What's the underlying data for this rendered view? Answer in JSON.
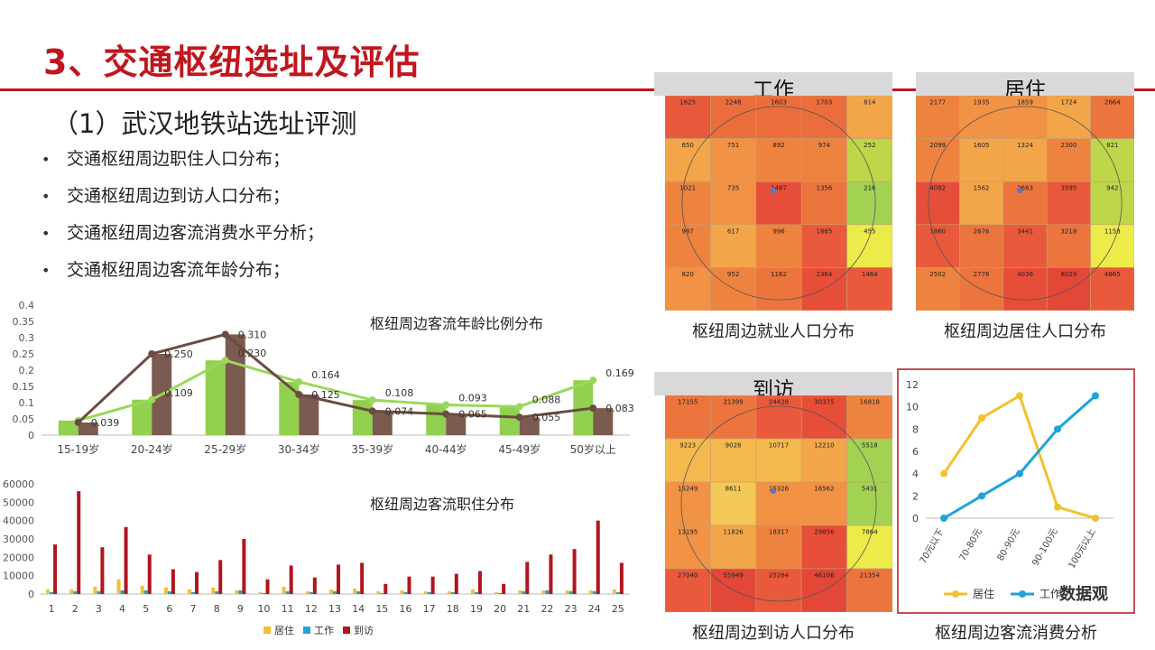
{
  "title": "3、交通枢纽选址及评估",
  "subtitle": "（1）武汉地铁站选址评测",
  "bullets": [
    "交通枢纽周边职住人口分布；",
    "交通枢纽周边到访人口分布；",
    "交通枢纽周边客流消费水平分析；",
    "交通枢纽周边客流年龄分布；"
  ],
  "colors": {
    "title_red": "#c0161e",
    "green": "#92d050",
    "brown": "#7b5a4f",
    "yellow": "#f2c12e",
    "blue": "#1fa3d8",
    "darkred": "#b0161e"
  },
  "chart_data": [
    {
      "type": "bar",
      "title": "枢纽周边客流年龄比例分布",
      "categories": [
        "15-19岁",
        "20-24岁",
        "25-29岁",
        "30-34岁",
        "35-39岁",
        "40-44岁",
        "45-49岁",
        "50岁以上"
      ],
      "ylim": [
        0,
        0.4
      ],
      "yticks": [
        "0",
        "0.05",
        "0.1",
        "0.15",
        "0.2",
        "0.25",
        "0.3",
        "0.35",
        "0.4"
      ],
      "series": [
        {
          "values": [
            0.045,
            0.109,
            0.23,
            0.164,
            0.108,
            0.093,
            0.088,
            0.169
          ],
          "labels": [
            "",
            "0.109",
            "0.230",
            "0.164",
            "0.108",
            "0.093",
            "0.088",
            "0.169"
          ],
          "color": "#92d050"
        },
        {
          "values": [
            0.039,
            0.25,
            0.31,
            0.125,
            0.074,
            0.065,
            0.055,
            0.083
          ],
          "labels": [
            "0.039",
            "0.250",
            "0.310",
            "0.125",
            "0.074",
            "0.065",
            "0.055",
            "0.083"
          ],
          "color": "#7b5a4f"
        }
      ],
      "grid": false
    },
    {
      "type": "bar",
      "title": "枢纽周边客流职住分布",
      "categories": [
        "1",
        "2",
        "3",
        "4",
        "5",
        "6",
        "7",
        "8",
        "9",
        "10",
        "11",
        "12",
        "13",
        "14",
        "15",
        "16",
        "17",
        "18",
        "19",
        "20",
        "21",
        "22",
        "23",
        "24",
        "25"
      ],
      "ylim": [
        0,
        60000
      ],
      "yticks": [
        "0",
        "10000",
        "20000",
        "30000",
        "40000",
        "50000",
        "60000"
      ],
      "legend_position": "bottom",
      "series": [
        {
          "name": "居住",
          "color": "#f2c12e",
          "values": [
            2500,
            2500,
            4000,
            8000,
            4500,
            3500,
            2500,
            3500,
            2000,
            1000,
            4000,
            1500,
            2500,
            3000,
            1500,
            2000,
            1500,
            1500,
            2500,
            1000,
            2000,
            2000,
            2000,
            2000,
            2500
          ]
        },
        {
          "name": "工作",
          "color": "#1fa3d8",
          "values": [
            1000,
            1500,
            1500,
            2000,
            2000,
            1500,
            1000,
            1500,
            2000,
            500,
            1500,
            1000,
            1500,
            1500,
            500,
            1000,
            1000,
            1000,
            1000,
            500,
            1500,
            2000,
            1500,
            1500,
            1000
          ]
        },
        {
          "name": "到访",
          "color": "#b0161e",
          "values": [
            27000,
            56000,
            25500,
            36500,
            21500,
            13500,
            12000,
            18500,
            30000,
            8000,
            15500,
            9000,
            16000,
            17000,
            5500,
            9500,
            9500,
            11000,
            12500,
            5500,
            17500,
            21500,
            24500,
            40000,
            17000
          ]
        }
      ],
      "grid": false
    },
    {
      "type": "line",
      "categories": [
        "70元以下",
        "70-80元",
        "80-90元",
        "90-100元",
        "100元以上"
      ],
      "ylim": [
        0,
        12
      ],
      "yticks": [
        "0",
        "2",
        "4",
        "6",
        "8",
        "10",
        "12"
      ],
      "legend_position": "bottom",
      "series": [
        {
          "name": "居住",
          "color": "#f2c12e",
          "values": [
            4,
            9,
            11,
            1,
            0
          ]
        },
        {
          "name": "工作",
          "color": "#1fa3d8",
          "values": [
            0,
            2,
            4,
            8,
            11
          ]
        }
      ],
      "grid": false
    },
    {
      "type": "heatmap",
      "title": "工作",
      "caption": "枢纽周边就业人口分布",
      "values": [
        [
          1625,
          2248,
          1603,
          1703,
          814
        ],
        [
          650,
          751,
          892,
          974,
          252
        ],
        [
          1021,
          735,
          1487,
          1356,
          216
        ],
        [
          987,
          617,
          996,
          1865,
          455
        ],
        [
          820,
          952,
          1162,
          2364,
          1464
        ]
      ],
      "colors": [
        [
          "#e74c2c",
          "#e9622c",
          "#e9622c",
          "#e9622c",
          "#f2a03c"
        ],
        [
          "#f2a03c",
          "#f08a36",
          "#ed7a32",
          "#ed7a32",
          "#b9d43c"
        ],
        [
          "#ed7a32",
          "#f08a36",
          "#e5402a",
          "#ea6a30",
          "#9bcf46"
        ],
        [
          "#ed7a32",
          "#f2a03c",
          "#ed7a32",
          "#e74c2c",
          "#eaea3c"
        ],
        [
          "#f08a36",
          "#ed7a32",
          "#ea6a30",
          "#e5402a",
          "#e74c2c"
        ]
      ]
    },
    {
      "type": "heatmap",
      "title": "居住",
      "caption": "枢纽周边居住人口分布",
      "values": [
        [
          2177,
          1935,
          1859,
          1724,
          2664
        ],
        [
          2099,
          1605,
          1324,
          2300,
          821
        ],
        [
          4092,
          1562,
          2663,
          3595,
          942
        ],
        [
          3860,
          2676,
          3441,
          3218,
          1158
        ],
        [
          2502,
          2776,
          4036,
          8029,
          4865
        ]
      ],
      "colors": [
        [
          "#ed7a32",
          "#f08a36",
          "#f08a36",
          "#f2a03c",
          "#ea6a30"
        ],
        [
          "#ed7a32",
          "#f2a03c",
          "#f2a03c",
          "#ed7a32",
          "#b9d43c"
        ],
        [
          "#e5402a",
          "#f2a03c",
          "#ea6a30",
          "#e74c2c",
          "#b9d43c"
        ],
        [
          "#e74c2c",
          "#ea6a30",
          "#e74c2c",
          "#ea6a30",
          "#eaea3c"
        ],
        [
          "#ed7a32",
          "#ea6a30",
          "#e5402a",
          "#e03828",
          "#e74c2c"
        ]
      ]
    },
    {
      "type": "heatmap",
      "title": "到访",
      "caption": "枢纽周边到访人口分布",
      "values": [
        [
          17155,
          21399,
          24428,
          30375,
          16818
        ],
        [
          9223,
          9028,
          10717,
          12210,
          5518
        ],
        [
          15249,
          8611,
          15326,
          16562,
          5431
        ],
        [
          13195,
          11826,
          18317,
          29856,
          7864
        ],
        [
          27040,
          55949,
          25264,
          46106,
          21354
        ]
      ],
      "colors": [
        [
          "#ea6a30",
          "#ea6a30",
          "#e74c2c",
          "#e5402a",
          "#ed7a32"
        ],
        [
          "#f2b441",
          "#f2b441",
          "#f2b441",
          "#f2a03c",
          "#9bcf46"
        ],
        [
          "#f08a36",
          "#f2c44a",
          "#f08a36",
          "#f08a36",
          "#9bcf46"
        ],
        [
          "#f08a36",
          "#f2a03c",
          "#ed7a32",
          "#e5402a",
          "#eaea3c"
        ],
        [
          "#e74c2c",
          "#e03828",
          "#e74c2c",
          "#e03828",
          "#ea6a30"
        ]
      ]
    }
  ],
  "consumption_caption": "枢纽周边客流消费分析",
  "watermark": "数据观"
}
